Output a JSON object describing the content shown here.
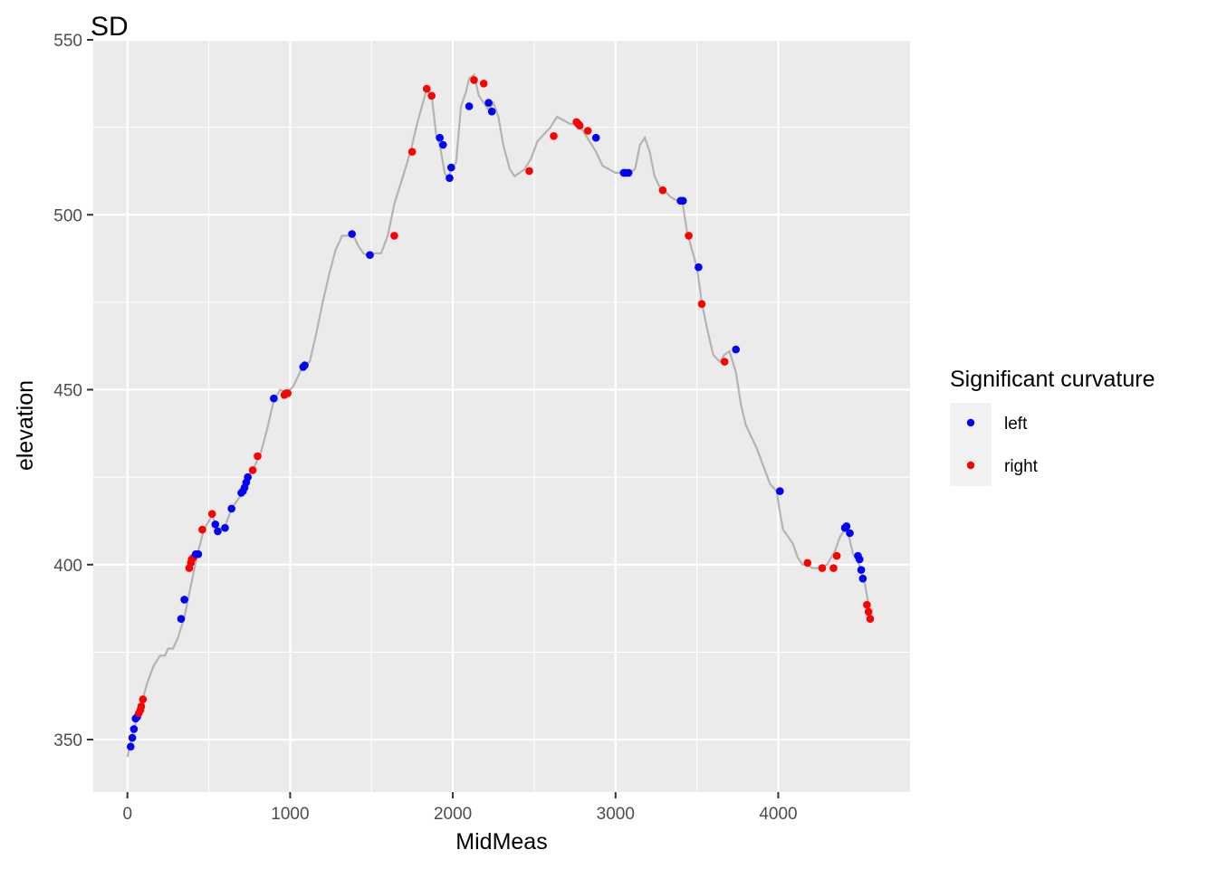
{
  "chart_data": {
    "type": "scatter",
    "title": "SD",
    "xlabel": "MidMeas",
    "ylabel": "elevation",
    "xlim": [
      -210,
      4810
    ],
    "ylim": [
      335,
      550
    ],
    "x_ticks": [
      0,
      1000,
      2000,
      3000,
      4000
    ],
    "y_ticks": [
      350,
      400,
      450,
      500,
      550
    ],
    "grid": true,
    "legend": {
      "title": "Significant curvature",
      "placement": "right",
      "entries": [
        {
          "label": "left",
          "color": "#0000ff"
        },
        {
          "label": "right",
          "color": "#ff0000"
        }
      ]
    },
    "line": {
      "name": "elevation profile",
      "color": "#b3b3b3",
      "x": [
        0,
        40,
        80,
        120,
        160,
        200,
        230,
        250,
        280,
        310,
        350,
        390,
        430,
        470,
        520,
        560,
        600,
        640,
        700,
        740,
        780,
        820,
        860,
        900,
        940,
        980,
        1020,
        1080,
        1120,
        1160,
        1200,
        1240,
        1280,
        1320,
        1360,
        1390,
        1420,
        1450,
        1490,
        1520,
        1560,
        1600,
        1640,
        1680,
        1720,
        1750,
        1780,
        1810,
        1840,
        1870,
        1900,
        1920,
        1950,
        1970,
        1990,
        2020,
        2050,
        2080,
        2100,
        2130,
        2160,
        2190,
        2220,
        2250,
        2280,
        2310,
        2350,
        2380,
        2410,
        2440,
        2480,
        2520,
        2560,
        2600,
        2640,
        2680,
        2720,
        2760,
        2800,
        2840,
        2880,
        2920,
        2960,
        3000,
        3040,
        3080,
        3120,
        3150,
        3180,
        3210,
        3240,
        3270,
        3300,
        3340,
        3380,
        3410,
        3440,
        3470,
        3500,
        3530,
        3560,
        3600,
        3640,
        3670,
        3700,
        3740,
        3770,
        3800,
        3830,
        3870,
        3910,
        3950,
        3990,
        4010,
        4030,
        4060,
        4090,
        4120,
        4150,
        4180,
        4210,
        4250,
        4300,
        4350,
        4380,
        4410,
        4430,
        4460,
        4490,
        4510,
        4530,
        4550,
        4570
      ],
      "y": [
        345,
        353,
        359,
        366,
        371,
        374,
        374,
        376,
        376,
        379,
        385,
        394,
        403,
        410,
        414,
        410,
        411,
        416,
        420,
        425,
        428,
        432,
        439,
        447,
        450,
        449,
        451,
        457,
        458,
        466,
        475,
        483,
        490,
        494,
        494,
        494,
        491,
        489,
        488,
        489,
        489,
        494,
        503,
        509,
        515,
        520,
        526,
        531,
        536,
        534,
        522,
        520,
        512,
        510,
        513,
        515,
        531,
        535,
        539,
        540,
        534,
        532,
        530,
        532,
        528,
        520,
        513,
        511,
        512,
        513,
        516,
        521,
        523,
        525,
        528,
        527,
        526,
        526,
        524,
        521,
        518,
        514,
        513,
        512,
        512,
        512,
        513,
        520,
        522,
        518,
        511,
        508,
        507,
        505,
        504,
        504,
        495,
        490,
        485,
        475,
        468,
        460,
        458,
        460,
        461,
        455,
        446,
        440,
        437,
        433,
        428,
        423,
        421,
        415,
        410,
        408,
        406,
        402,
        400,
        400,
        399,
        399,
        400,
        404,
        408,
        410,
        409,
        403,
        401,
        398,
        395,
        390,
        385
      ],
      "points": [
        {
          "x": 20,
          "y": 348,
          "s": "left"
        },
        {
          "x": 30,
          "y": 350.5,
          "s": "left"
        },
        {
          "x": 40,
          "y": 353,
          "s": "left"
        },
        {
          "x": 50,
          "y": 356,
          "s": "left"
        },
        {
          "x": 60,
          "y": 356.5,
          "s": "left"
        },
        {
          "x": 70,
          "y": 357.5,
          "s": "right"
        },
        {
          "x": 80,
          "y": 358.5,
          "s": "right"
        },
        {
          "x": 85,
          "y": 359.5,
          "s": "right"
        },
        {
          "x": 95,
          "y": 361.5,
          "s": "right"
        },
        {
          "x": 330,
          "y": 384.5,
          "s": "left"
        },
        {
          "x": 350,
          "y": 390,
          "s": "left"
        },
        {
          "x": 380,
          "y": 399,
          "s": "right"
        },
        {
          "x": 390,
          "y": 400.5,
          "s": "right"
        },
        {
          "x": 395,
          "y": 401.5,
          "s": "right"
        },
        {
          "x": 405,
          "y": 402,
          "s": "right"
        },
        {
          "x": 420,
          "y": 403,
          "s": "left"
        },
        {
          "x": 435,
          "y": 403,
          "s": "left"
        },
        {
          "x": 460,
          "y": 410,
          "s": "right"
        },
        {
          "x": 520,
          "y": 414.5,
          "s": "right"
        },
        {
          "x": 540,
          "y": 411.5,
          "s": "left"
        },
        {
          "x": 555,
          "y": 409.5,
          "s": "left"
        },
        {
          "x": 600,
          "y": 410.5,
          "s": "left"
        },
        {
          "x": 640,
          "y": 416,
          "s": "left"
        },
        {
          "x": 700,
          "y": 420.5,
          "s": "left"
        },
        {
          "x": 710,
          "y": 421,
          "s": "left"
        },
        {
          "x": 720,
          "y": 422,
          "s": "left"
        },
        {
          "x": 730,
          "y": 423.5,
          "s": "left"
        },
        {
          "x": 740,
          "y": 425,
          "s": "left"
        },
        {
          "x": 770,
          "y": 427,
          "s": "right"
        },
        {
          "x": 800,
          "y": 431,
          "s": "right"
        },
        {
          "x": 900,
          "y": 447.5,
          "s": "left"
        },
        {
          "x": 965,
          "y": 448.5,
          "s": "right"
        },
        {
          "x": 975,
          "y": 449,
          "s": "right"
        },
        {
          "x": 985,
          "y": 449,
          "s": "right"
        },
        {
          "x": 1080,
          "y": 456.5,
          "s": "left"
        },
        {
          "x": 1090,
          "y": 457,
          "s": "left"
        },
        {
          "x": 1380,
          "y": 494.5,
          "s": "left"
        },
        {
          "x": 1490,
          "y": 488.5,
          "s": "left"
        },
        {
          "x": 1640,
          "y": 494,
          "s": "right"
        },
        {
          "x": 1750,
          "y": 518,
          "s": "right"
        },
        {
          "x": 1840,
          "y": 536,
          "s": "right"
        },
        {
          "x": 1870,
          "y": 534,
          "s": "right"
        },
        {
          "x": 1920,
          "y": 522,
          "s": "left"
        },
        {
          "x": 1940,
          "y": 520,
          "s": "left"
        },
        {
          "x": 1980,
          "y": 510.5,
          "s": "left"
        },
        {
          "x": 1990,
          "y": 513.5,
          "s": "left"
        },
        {
          "x": 2100,
          "y": 531,
          "s": "left"
        },
        {
          "x": 2130,
          "y": 538.5,
          "s": "right"
        },
        {
          "x": 2190,
          "y": 537.5,
          "s": "right"
        },
        {
          "x": 2220,
          "y": 532,
          "s": "left"
        },
        {
          "x": 2240,
          "y": 529.5,
          "s": "left"
        },
        {
          "x": 2470,
          "y": 512.5,
          "s": "right"
        },
        {
          "x": 2620,
          "y": 522.5,
          "s": "right"
        },
        {
          "x": 2760,
          "y": 526.5,
          "s": "right"
        },
        {
          "x": 2770,
          "y": 526,
          "s": "right"
        },
        {
          "x": 2780,
          "y": 525.5,
          "s": "right"
        },
        {
          "x": 2830,
          "y": 524,
          "s": "right"
        },
        {
          "x": 2880,
          "y": 522,
          "s": "left"
        },
        {
          "x": 3050,
          "y": 512,
          "s": "left"
        },
        {
          "x": 3060,
          "y": 512,
          "s": "left"
        },
        {
          "x": 3080,
          "y": 512,
          "s": "left"
        },
        {
          "x": 3290,
          "y": 507,
          "s": "right"
        },
        {
          "x": 3400,
          "y": 504,
          "s": "left"
        },
        {
          "x": 3415,
          "y": 504,
          "s": "left"
        },
        {
          "x": 3450,
          "y": 494,
          "s": "right"
        },
        {
          "x": 3510,
          "y": 485,
          "s": "left"
        },
        {
          "x": 3530,
          "y": 474.5,
          "s": "right"
        },
        {
          "x": 3670,
          "y": 458,
          "s": "right"
        },
        {
          "x": 3740,
          "y": 461.5,
          "s": "left"
        },
        {
          "x": 4010,
          "y": 421,
          "s": "left"
        },
        {
          "x": 4180,
          "y": 400.5,
          "s": "right"
        },
        {
          "x": 4270,
          "y": 399,
          "s": "right"
        },
        {
          "x": 4340,
          "y": 399,
          "s": "right"
        },
        {
          "x": 4360,
          "y": 402.5,
          "s": "right"
        },
        {
          "x": 4410,
          "y": 410.5,
          "s": "left"
        },
        {
          "x": 4420,
          "y": 411,
          "s": "left"
        },
        {
          "x": 4440,
          "y": 409,
          "s": "left"
        },
        {
          "x": 4490,
          "y": 402.5,
          "s": "left"
        },
        {
          "x": 4500,
          "y": 401.5,
          "s": "left"
        },
        {
          "x": 4510,
          "y": 398.5,
          "s": "left"
        },
        {
          "x": 4520,
          "y": 396,
          "s": "left"
        },
        {
          "x": 4545,
          "y": 388.5,
          "s": "right"
        },
        {
          "x": 4555,
          "y": 386.5,
          "s": "right"
        },
        {
          "x": 4565,
          "y": 384.5,
          "s": "right"
        }
      ]
    }
  }
}
